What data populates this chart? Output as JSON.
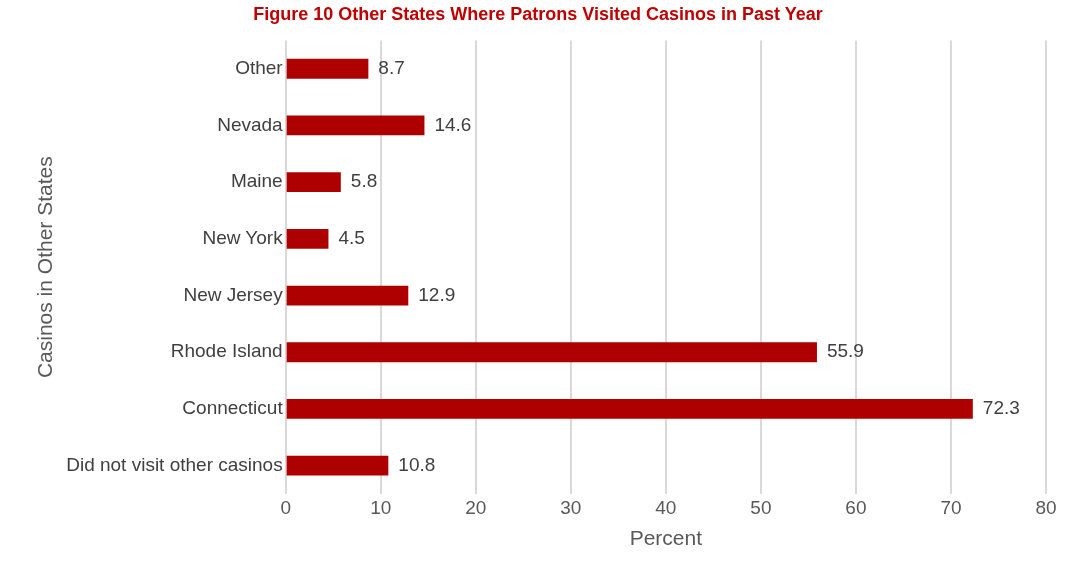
{
  "chart_data": {
    "type": "bar",
    "orientation": "horizontal",
    "title": "Figure 10 Other States Where Patrons Visited Casinos in Past Year",
    "xlabel": "Percent",
    "ylabel": "Casinos in Other States",
    "categories": [
      "Other",
      "Nevada",
      "Maine",
      "New York",
      "New Jersey",
      "Rhode Island",
      "Connecticut",
      "Did not visit other casinos"
    ],
    "values": [
      8.7,
      14.6,
      5.8,
      4.5,
      12.9,
      55.9,
      72.3,
      10.8
    ],
    "color": "#af0000",
    "xlim": [
      0,
      80
    ],
    "xticks": [
      0,
      10,
      20,
      30,
      40,
      50,
      60,
      70,
      80
    ],
    "grid": "x",
    "data_labels": true,
    "legend": false
  }
}
